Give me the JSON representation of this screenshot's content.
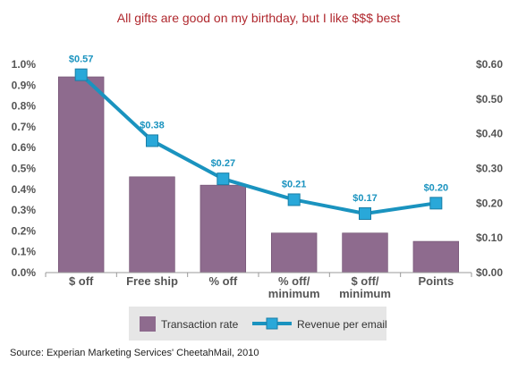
{
  "chart_data": {
    "type": "bar",
    "title": "All gifts are good on my birthday, but I like $$$ best",
    "categories": [
      [
        "$ off"
      ],
      [
        "Free ship"
      ],
      [
        "% off"
      ],
      [
        "% off/",
        "minimum"
      ],
      [
        "$ off/",
        "minimum"
      ],
      [
        "Points"
      ]
    ],
    "series": [
      {
        "name": "Transaction rate",
        "type": "bar",
        "axis": "left",
        "values": [
          0.94,
          0.46,
          0.42,
          0.19,
          0.19,
          0.15
        ]
      },
      {
        "name": "Revenue per email",
        "type": "line",
        "axis": "right",
        "values": [
          0.57,
          0.38,
          0.27,
          0.21,
          0.17,
          0.2
        ],
        "labels": [
          "$0.57",
          "$0.38",
          "$0.27",
          "$0.21",
          "$0.17",
          "$0.20"
        ]
      }
    ],
    "y_left": {
      "min": 0,
      "max": 1.0,
      "ticks": [
        "0.0%",
        "0.1%",
        "0.2%",
        "0.3%",
        "0.4%",
        "0.5%",
        "0.6%",
        "0.7%",
        "0.8%",
        "0.9%",
        "1.0%"
      ]
    },
    "y_right": {
      "min": 0,
      "max": 0.6,
      "ticks": [
        "$0.00",
        "$0.10",
        "$0.20",
        "$0.30",
        "$0.40",
        "$0.50",
        "$0.60"
      ]
    },
    "grid": false,
    "legend_position": "bottom-center",
    "colors": {
      "bar": "#8e6b8e",
      "line": "#1a93bf",
      "marker": "#29a8d9",
      "title": "#b0282e"
    }
  },
  "source": "Source: Experian Marketing Services' CheetahMail, 2010"
}
